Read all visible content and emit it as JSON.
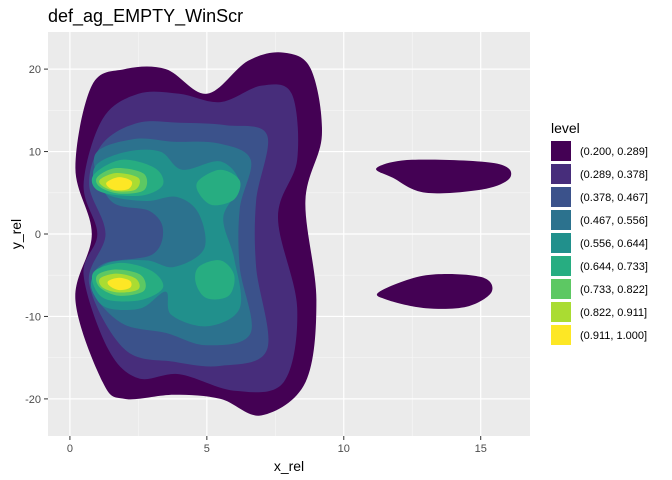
{
  "chart_data": {
    "type": "contour",
    "title": "def_ag_EMPTY_WinScr",
    "xlabel": "x_rel",
    "ylabel": "y_rel",
    "xlim": [
      -0.8,
      16.8
    ],
    "ylim": [
      -24.5,
      24.5
    ],
    "x_ticks": [
      0,
      5,
      10,
      15
    ],
    "y_ticks": [
      -20,
      -10,
      0,
      10,
      20
    ],
    "grid": true,
    "legend_position": "right",
    "legend": {
      "title": "level",
      "entries": [
        {
          "label": "(0.200, 0.289]",
          "color": "#440154"
        },
        {
          "label": "(0.289, 0.378]",
          "color": "#472D7B"
        },
        {
          "label": "(0.378, 0.467]",
          "color": "#3B528B"
        },
        {
          "label": "(0.467, 0.556]",
          "color": "#2C728E"
        },
        {
          "label": "(0.556, 0.644]",
          "color": "#21908C"
        },
        {
          "label": "(0.644, 0.733]",
          "color": "#27AD81"
        },
        {
          "label": "(0.733, 0.822]",
          "color": "#5DC863"
        },
        {
          "label": "(0.822, 0.911]",
          "color": "#AADC32"
        },
        {
          "label": "(0.911, 1.000]",
          "color": "#FDE725"
        }
      ]
    },
    "bands": [
      {
        "level": 0,
        "color": "#440154",
        "outline": [
          [
            0.8,
            18
          ],
          [
            2,
            20
          ],
          [
            3.5,
            20
          ],
          [
            5,
            17
          ],
          [
            6.5,
            21
          ],
          [
            7.8,
            22
          ],
          [
            8.8,
            20
          ],
          [
            9.2,
            12
          ],
          [
            8.6,
            4
          ],
          [
            9,
            -8
          ],
          [
            8.6,
            -18
          ],
          [
            7,
            -22
          ],
          [
            5.5,
            -20
          ],
          [
            3.8,
            -19.5
          ],
          [
            2,
            -20
          ],
          [
            1.2,
            -18
          ],
          [
            0.2,
            -8
          ],
          [
            0.8,
            0
          ],
          [
            0.2,
            8
          ]
        ]
      },
      {
        "level": 0,
        "color": "#440154",
        "outline": [
          [
            11.2,
            8
          ],
          [
            12.5,
            9
          ],
          [
            15.5,
            8.6
          ],
          [
            16.1,
            7
          ],
          [
            15.2,
            5.5
          ],
          [
            13,
            5
          ],
          [
            11.8,
            6.8
          ]
        ]
      },
      {
        "level": 0,
        "color": "#440154",
        "outline": [
          [
            11.3,
            -7
          ],
          [
            13,
            -5
          ],
          [
            15,
            -5.2
          ],
          [
            15.4,
            -7
          ],
          [
            14.5,
            -8.8
          ],
          [
            13,
            -9
          ],
          [
            11.6,
            -8
          ]
        ]
      },
      {
        "level": 1,
        "color": "#472D7B",
        "outline": [
          [
            1.2,
            14
          ],
          [
            2.5,
            17
          ],
          [
            4,
            17
          ],
          [
            5.5,
            16
          ],
          [
            7,
            18
          ],
          [
            8.1,
            17
          ],
          [
            8.3,
            9
          ],
          [
            7.6,
            2
          ],
          [
            8.3,
            -9
          ],
          [
            7.8,
            -18
          ],
          [
            6,
            -19
          ],
          [
            4,
            -17
          ],
          [
            2.5,
            -17.5
          ],
          [
            1.4,
            -14
          ],
          [
            0.5,
            -5
          ],
          [
            1,
            0
          ],
          [
            0.5,
            6
          ]
        ]
      },
      {
        "level": 2,
        "color": "#3B528B",
        "outline": [
          [
            1.2,
            11
          ],
          [
            2.5,
            13.5
          ],
          [
            4,
            13.5
          ],
          [
            5.7,
            13.2
          ],
          [
            7.2,
            12
          ],
          [
            6.8,
            4
          ],
          [
            6.8,
            -4
          ],
          [
            7.2,
            -14
          ],
          [
            5.5,
            -16
          ],
          [
            3.8,
            -15.5
          ],
          [
            2,
            -14
          ],
          [
            0.7,
            -6
          ],
          [
            1.3,
            0
          ],
          [
            0.7,
            6
          ]
        ]
      },
      {
        "level": 3,
        "color": "#2C728E",
        "outline": [
          [
            0.9,
            9.5
          ],
          [
            2.3,
            11.5
          ],
          [
            3.8,
            11.2
          ],
          [
            5.4,
            11
          ],
          [
            6.6,
            9
          ],
          [
            6.2,
            3
          ],
          [
            6.2,
            -4
          ],
          [
            6.6,
            -12
          ],
          [
            5,
            -13.5
          ],
          [
            3.5,
            -12
          ],
          [
            2,
            -11
          ],
          [
            1,
            -8
          ],
          [
            0.8,
            -5.5
          ],
          [
            1.3,
            -3.5
          ],
          [
            3,
            -2.5
          ],
          [
            3.4,
            0.5
          ],
          [
            2.9,
            2.8
          ],
          [
            1.5,
            4
          ]
        ]
      },
      {
        "level": 4,
        "color": "#21908C",
        "outline": [
          [
            1,
            8.5
          ],
          [
            2.1,
            10
          ],
          [
            3.3,
            10
          ],
          [
            4.1,
            7.8
          ],
          [
            5.5,
            8.8
          ],
          [
            6.2,
            6
          ],
          [
            5.6,
            2
          ],
          [
            6,
            -3
          ],
          [
            6.2,
            -9
          ],
          [
            5,
            -11.2
          ],
          [
            3.7,
            -9.8
          ],
          [
            3.5,
            -7
          ],
          [
            2.6,
            -9
          ],
          [
            1.4,
            -9
          ],
          [
            0.9,
            -7.5
          ],
          [
            0.8,
            -5.5
          ],
          [
            1.4,
            -3.5
          ],
          [
            2.8,
            -3.2
          ],
          [
            3.8,
            -4
          ],
          [
            4.9,
            -1.8
          ],
          [
            4.7,
            2.5
          ],
          [
            3.9,
            4.5
          ],
          [
            2.8,
            4
          ],
          [
            1.5,
            4.6
          ],
          [
            0.9,
            6.2
          ]
        ]
      },
      {
        "level": 5,
        "color": "#27AD81",
        "outline": [
          [
            0.9,
            7.3
          ],
          [
            1.9,
            9
          ],
          [
            3.1,
            8
          ],
          [
            3.4,
            6
          ],
          [
            2.7,
            4.7
          ],
          [
            1.5,
            4.8
          ],
          [
            0.9,
            5.6
          ]
        ]
      },
      {
        "level": 5,
        "color": "#27AD81",
        "outline": [
          [
            0.9,
            -4.5
          ],
          [
            1.9,
            -3.5
          ],
          [
            3,
            -4.5
          ],
          [
            3.4,
            -6.5
          ],
          [
            2.6,
            -8
          ],
          [
            1.4,
            -8
          ],
          [
            0.9,
            -6.5
          ]
        ]
      },
      {
        "level": 5,
        "color": "#27AD81",
        "outline": [
          [
            4.7,
            6.5
          ],
          [
            5.5,
            7.8
          ],
          [
            6.2,
            6.5
          ],
          [
            6,
            4.2
          ],
          [
            5.2,
            3.5
          ],
          [
            4.7,
            5
          ]
        ]
      },
      {
        "level": 5,
        "color": "#27AD81",
        "outline": [
          [
            4.7,
            -4
          ],
          [
            5.5,
            -3.2
          ],
          [
            6,
            -5
          ],
          [
            5.8,
            -7.5
          ],
          [
            5,
            -7.8
          ],
          [
            4.6,
            -6
          ]
        ]
      },
      {
        "level": 6,
        "color": "#5DC863",
        "outline": [
          [
            1,
            6.9
          ],
          [
            1.7,
            8
          ],
          [
            2.7,
            7.3
          ],
          [
            2.7,
            5.3
          ],
          [
            1.8,
            4.9
          ],
          [
            1.1,
            5.7
          ]
        ]
      },
      {
        "level": 6,
        "color": "#5DC863",
        "outline": [
          [
            1,
            -5
          ],
          [
            1.7,
            -4.3
          ],
          [
            2.6,
            -5
          ],
          [
            2.7,
            -6.9
          ],
          [
            1.8,
            -7.5
          ],
          [
            1.1,
            -6.5
          ]
        ]
      },
      {
        "level": 7,
        "color": "#AADC32",
        "outline": [
          [
            1.1,
            6.6
          ],
          [
            1.7,
            7.4
          ],
          [
            2.5,
            6.8
          ],
          [
            2.4,
            5.4
          ],
          [
            1.7,
            5.2
          ],
          [
            1.2,
            5.8
          ]
        ]
      },
      {
        "level": 7,
        "color": "#AADC32",
        "outline": [
          [
            1.1,
            -5.4
          ],
          [
            1.7,
            -4.8
          ],
          [
            2.4,
            -5.4
          ],
          [
            2.5,
            -6.7
          ],
          [
            1.8,
            -7.1
          ],
          [
            1.2,
            -6.5
          ]
        ]
      },
      {
        "level": 8,
        "color": "#FDE725",
        "outline": [
          [
            1.35,
            6.3
          ],
          [
            1.8,
            6.9
          ],
          [
            2.25,
            6.4
          ],
          [
            2.15,
            5.5
          ],
          [
            1.7,
            5.3
          ],
          [
            1.4,
            5.7
          ]
        ]
      },
      {
        "level": 8,
        "color": "#FDE725",
        "outline": [
          [
            1.4,
            -5.7
          ],
          [
            1.8,
            -5.3
          ],
          [
            2.2,
            -5.7
          ],
          [
            2.2,
            -6.5
          ],
          [
            1.8,
            -6.8
          ],
          [
            1.45,
            -6.3
          ]
        ]
      }
    ]
  }
}
